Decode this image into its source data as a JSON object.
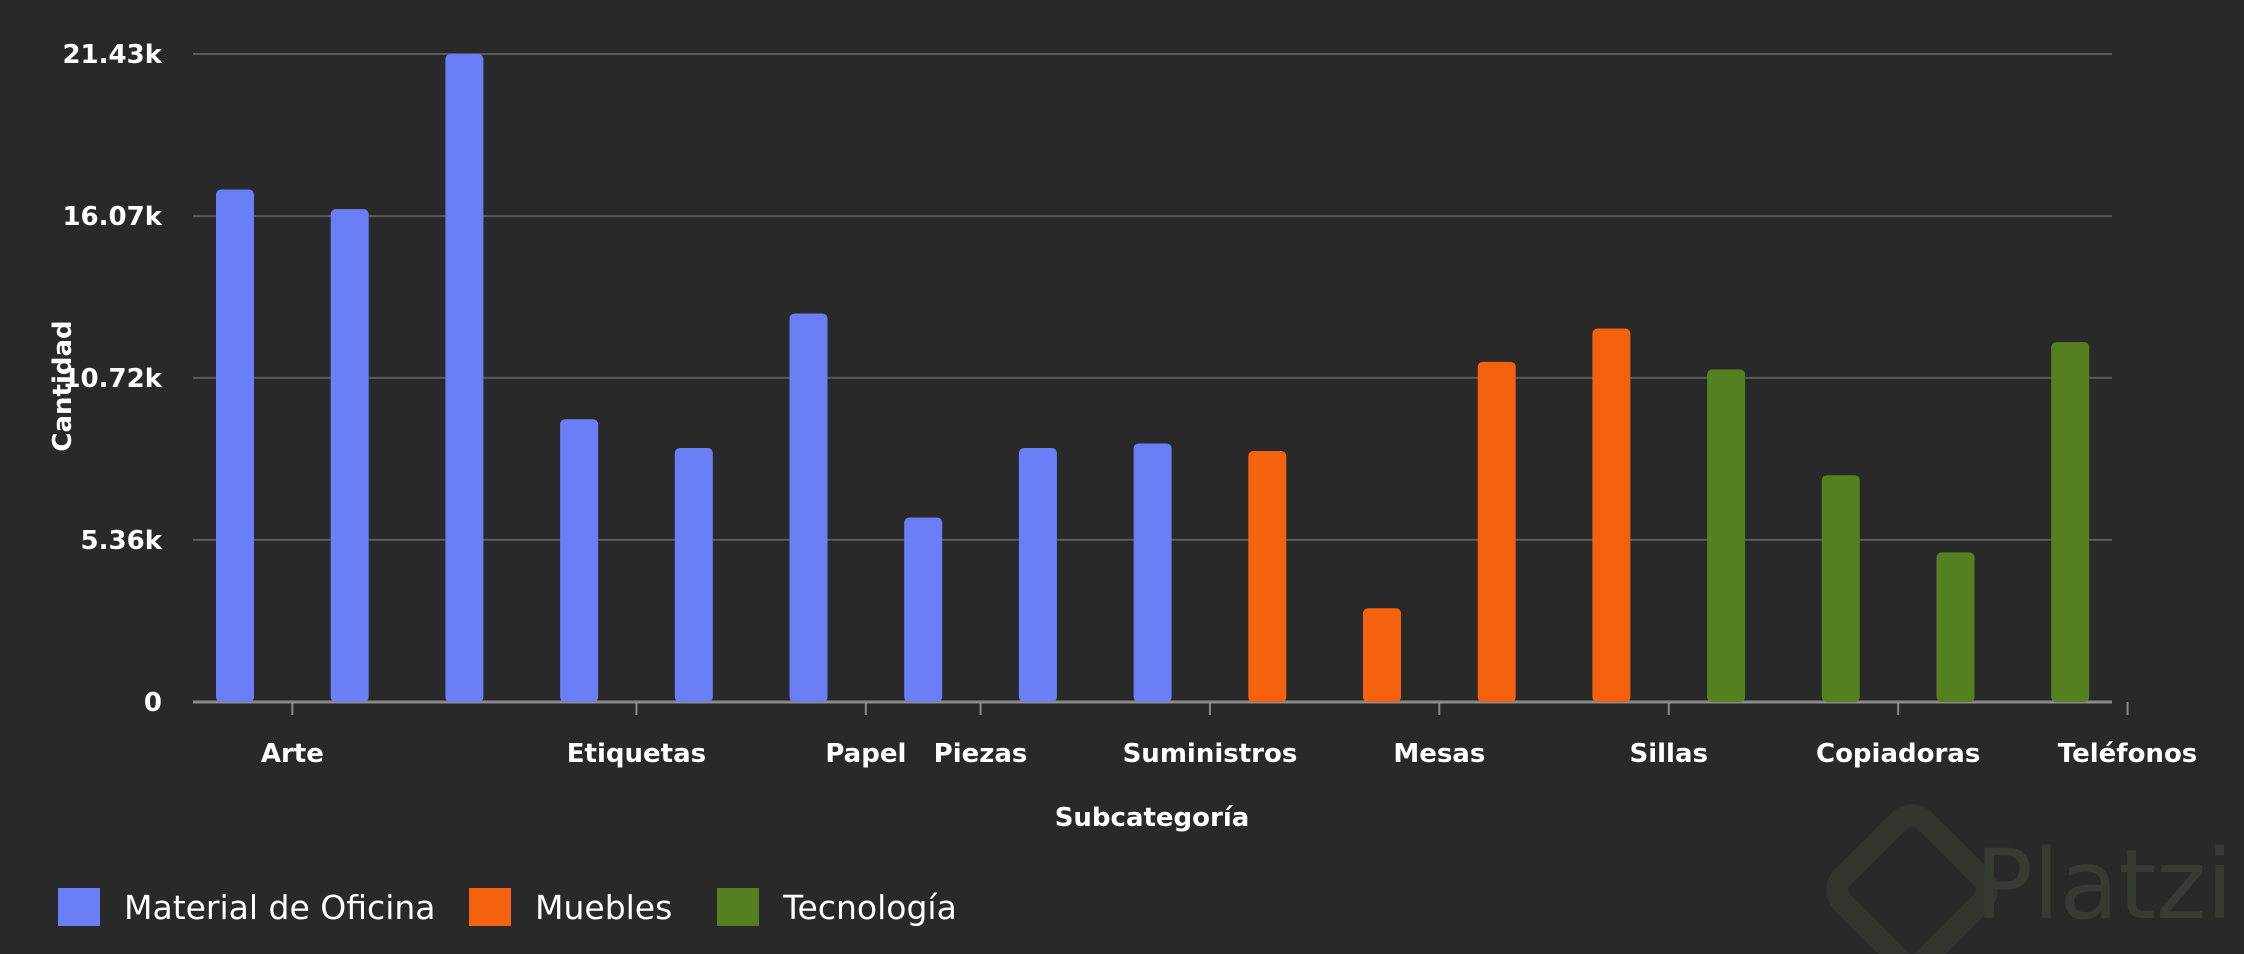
{
  "chart_data": {
    "type": "bar",
    "xlabel": "Subcategoría",
    "ylabel": "Cantidad",
    "ylim": [
      0,
      21430
    ],
    "yticks": [
      {
        "value": 0,
        "label": "0"
      },
      {
        "value": 5360,
        "label": "5.36k"
      },
      {
        "value": 10720,
        "label": "10.72k"
      },
      {
        "value": 16070,
        "label": "16.07k"
      },
      {
        "value": 21430,
        "label": "21.43k"
      }
    ],
    "grid": true,
    "legend_position": "bottom-left",
    "colors": {
      "Material de Oficina": "#6a7ff5",
      "Muebles": "#f5620f",
      "Tecnología": "#55801f"
    },
    "legend": [
      "Material de Oficina",
      "Muebles",
      "Tecnología"
    ],
    "bars": [
      {
        "category": "",
        "group": "Material de Oficina",
        "value": 16950
      },
      {
        "category": "Arte",
        "group": "Material de Oficina",
        "value": 16300
      },
      {
        "category": "",
        "group": "Material de Oficina",
        "value": 21430
      },
      {
        "category": "",
        "group": "Material de Oficina",
        "value": 9350
      },
      {
        "category": "Etiquetas",
        "group": "Material de Oficina",
        "value": 8400
      },
      {
        "category": "",
        "group": "Material de Oficina",
        "value": 12850
      },
      {
        "category": "Papel",
        "group": "Material de Oficina",
        "value": 6100
      },
      {
        "category": "Piezas",
        "group": "Material de Oficina",
        "value": 8400
      },
      {
        "category": "",
        "group": "Material de Oficina",
        "value": 8550
      },
      {
        "category": "Suministros",
        "group": "Muebles",
        "value": 8300
      },
      {
        "category": "",
        "group": "Muebles",
        "value": 3100
      },
      {
        "category": "Mesas",
        "group": "Muebles",
        "value": 11250
      },
      {
        "category": "",
        "group": "Muebles",
        "value": 12350
      },
      {
        "category": "Sillas",
        "group": "Tecnología",
        "value": 11000
      },
      {
        "category": "",
        "group": "Tecnología",
        "value": 7500
      },
      {
        "category": "Copiadoras",
        "group": "Tecnología",
        "value": 4950
      },
      {
        "category": "",
        "group": "Tecnología",
        "value": 11900
      },
      {
        "category": "Teléfonos",
        "group": "Tecnología",
        "value": null
      }
    ]
  },
  "watermark": "Platzi"
}
